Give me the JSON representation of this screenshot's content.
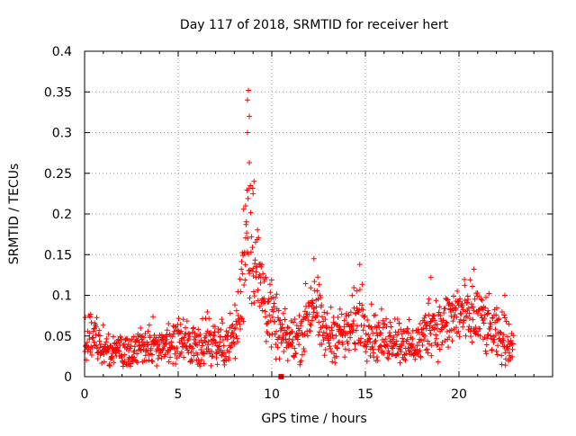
{
  "chart_data": {
    "type": "scatter",
    "title": "Day 117 of 2018, SRMTID for receiver hert",
    "xlabel": "GPS time / hours",
    "ylabel": "SRMTID / TECUs",
    "xlim": [
      0,
      25
    ],
    "ylim": [
      0,
      0.4
    ],
    "xticks": [
      0,
      5,
      10,
      15,
      20
    ],
    "xtick_labels": [
      "0",
      "5",
      "10",
      "15",
      "20"
    ],
    "yticks": [
      0,
      0.05,
      0.1,
      0.15,
      0.2,
      0.25,
      0.3,
      0.35,
      0.4
    ],
    "ytick_labels": [
      "0",
      "0.05",
      "0.1",
      "0.15",
      "0.2",
      "0.25",
      "0.3",
      "0.35",
      "0.4"
    ],
    "grid": true,
    "marker": "+",
    "color": "#ff0000",
    "series": [
      {
        "name": "SRMTID",
        "envelope": [
          [
            0.0,
            0.045
          ],
          [
            0.5,
            0.045
          ],
          [
            1.0,
            0.035
          ],
          [
            1.5,
            0.032
          ],
          [
            2.0,
            0.03
          ],
          [
            2.5,
            0.033
          ],
          [
            3.0,
            0.035
          ],
          [
            3.5,
            0.037
          ],
          [
            4.0,
            0.04
          ],
          [
            4.5,
            0.038
          ],
          [
            5.0,
            0.04
          ],
          [
            5.5,
            0.042
          ],
          [
            6.0,
            0.04
          ],
          [
            6.5,
            0.045
          ],
          [
            7.0,
            0.043
          ],
          [
            7.5,
            0.04
          ],
          [
            8.0,
            0.05
          ],
          [
            8.3,
            0.08
          ],
          [
            8.5,
            0.15
          ],
          [
            8.7,
            0.2
          ],
          [
            9.0,
            0.16
          ],
          [
            9.3,
            0.12
          ],
          [
            9.6,
            0.1
          ],
          [
            10.0,
            0.07
          ],
          [
            10.5,
            0.05
          ],
          [
            11.0,
            0.045
          ],
          [
            11.5,
            0.05
          ],
          [
            12.0,
            0.08
          ],
          [
            12.3,
            0.1
          ],
          [
            12.6,
            0.06
          ],
          [
            13.0,
            0.05
          ],
          [
            13.5,
            0.055
          ],
          [
            14.0,
            0.05
          ],
          [
            14.5,
            0.07
          ],
          [
            14.8,
            0.08
          ],
          [
            15.2,
            0.055
          ],
          [
            15.5,
            0.05
          ],
          [
            16.0,
            0.045
          ],
          [
            16.5,
            0.05
          ],
          [
            17.0,
            0.045
          ],
          [
            17.5,
            0.035
          ],
          [
            18.0,
            0.045
          ],
          [
            18.5,
            0.07
          ],
          [
            19.0,
            0.06
          ],
          [
            19.5,
            0.07
          ],
          [
            20.0,
            0.08
          ],
          [
            20.5,
            0.07
          ],
          [
            21.0,
            0.075
          ],
          [
            21.5,
            0.06
          ],
          [
            22.0,
            0.05
          ],
          [
            22.5,
            0.045
          ],
          [
            22.9,
            0.04
          ]
        ],
        "notable_points": [
          {
            "x": 8.75,
            "y": 0.352
          },
          {
            "x": 8.7,
            "y": 0.34
          },
          {
            "x": 8.8,
            "y": 0.32
          },
          {
            "x": 8.7,
            "y": 0.3
          },
          {
            "x": 8.8,
            "y": 0.263
          },
          {
            "x": 9.05,
            "y": 0.24
          },
          {
            "x": 9.0,
            "y": 0.225
          },
          {
            "x": 8.6,
            "y": 0.21
          },
          {
            "x": 12.25,
            "y": 0.145
          },
          {
            "x": 14.7,
            "y": 0.138
          },
          {
            "x": 20.8,
            "y": 0.132
          },
          {
            "x": 18.5,
            "y": 0.122
          },
          {
            "x": 22.45,
            "y": 0.1
          },
          {
            "x": 10.5,
            "y": 0.0
          }
        ]
      }
    ]
  }
}
